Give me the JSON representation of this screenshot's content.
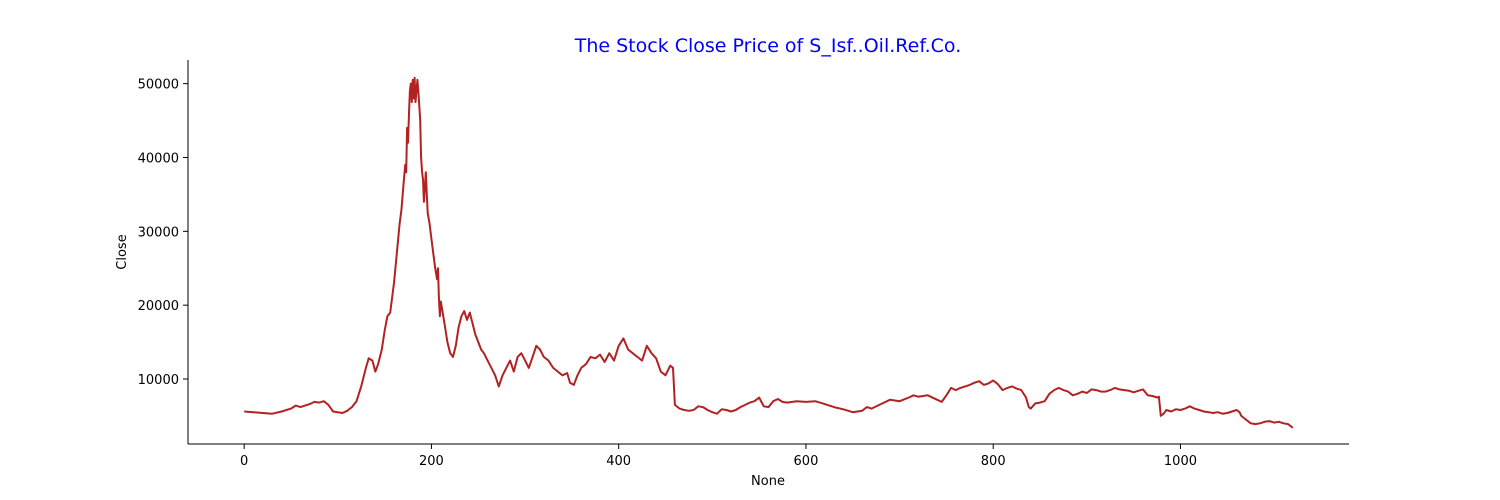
{
  "chart_data": {
    "type": "line",
    "title": "The Stock Close Price of S_Isf..Oil.Ref.Co.",
    "xlabel": "None",
    "ylabel": "Close",
    "xlim": [
      -60,
      1180
    ],
    "ylim": [
      1200,
      53200
    ],
    "xticks": [
      0,
      200,
      400,
      600,
      800,
      1000
    ],
    "yticks": [
      10000,
      20000,
      30000,
      40000,
      50000
    ],
    "grid": false,
    "colors": {
      "line": "#b22222",
      "title": "#0000ff"
    },
    "series": [
      {
        "points": [
          [
            0,
            5600
          ],
          [
            10,
            5500
          ],
          [
            20,
            5400
          ],
          [
            30,
            5300
          ],
          [
            40,
            5600
          ],
          [
            50,
            6000
          ],
          [
            55,
            6400
          ],
          [
            60,
            6200
          ],
          [
            70,
            6600
          ],
          [
            75,
            6900
          ],
          [
            80,
            6800
          ],
          [
            85,
            7000
          ],
          [
            90,
            6500
          ],
          [
            95,
            5600
          ],
          [
            100,
            5500
          ],
          [
            105,
            5400
          ],
          [
            110,
            5700
          ],
          [
            115,
            6200
          ],
          [
            120,
            7000
          ],
          [
            125,
            9000
          ],
          [
            130,
            11500
          ],
          [
            133,
            12800
          ],
          [
            137,
            12500
          ],
          [
            140,
            11000
          ],
          [
            143,
            12000
          ],
          [
            147,
            14000
          ],
          [
            150,
            16500
          ],
          [
            153,
            18500
          ],
          [
            156,
            19000
          ],
          [
            160,
            23000
          ],
          [
            163,
            27000
          ],
          [
            166,
            31000
          ],
          [
            168,
            33000
          ],
          [
            170,
            36000
          ],
          [
            172,
            39000
          ],
          [
            173,
            38000
          ],
          [
            174,
            44000
          ],
          [
            175,
            42000
          ],
          [
            176,
            46000
          ],
          [
            177,
            49000
          ],
          [
            178,
            50000
          ],
          [
            179,
            47500
          ],
          [
            180,
            50500
          ],
          [
            181,
            48000
          ],
          [
            182,
            50800
          ],
          [
            183,
            47500
          ],
          [
            184,
            49000
          ],
          [
            185,
            50500
          ],
          [
            186,
            49000
          ],
          [
            187,
            47000
          ],
          [
            188,
            45000
          ],
          [
            189,
            40000
          ],
          [
            190,
            38000
          ],
          [
            191,
            37000
          ],
          [
            192,
            34000
          ],
          [
            193,
            36000
          ],
          [
            194,
            38000
          ],
          [
            195,
            35000
          ],
          [
            196,
            32500
          ],
          [
            198,
            31000
          ],
          [
            200,
            29000
          ],
          [
            202,
            27000
          ],
          [
            204,
            25000
          ],
          [
            206,
            23500
          ],
          [
            207,
            25000
          ],
          [
            208,
            21000
          ],
          [
            209,
            18500
          ],
          [
            210,
            20500
          ],
          [
            212,
            19000
          ],
          [
            214,
            17500
          ],
          [
            217,
            15000
          ],
          [
            220,
            13500
          ],
          [
            223,
            13000
          ],
          [
            226,
            14500
          ],
          [
            229,
            17000
          ],
          [
            232,
            18500
          ],
          [
            235,
            19200
          ],
          [
            238,
            18000
          ],
          [
            241,
            19000
          ],
          [
            244,
            17500
          ],
          [
            247,
            16000
          ],
          [
            250,
            15000
          ],
          [
            253,
            14000
          ],
          [
            256,
            13500
          ],
          [
            260,
            12500
          ],
          [
            264,
            11500
          ],
          [
            268,
            10500
          ],
          [
            272,
            9000
          ],
          [
            276,
            10500
          ],
          [
            280,
            11500
          ],
          [
            284,
            12500
          ],
          [
            288,
            11000
          ],
          [
            292,
            13000
          ],
          [
            296,
            13500
          ],
          [
            300,
            12500
          ],
          [
            304,
            11500
          ],
          [
            308,
            13000
          ],
          [
            312,
            14500
          ],
          [
            316,
            14000
          ],
          [
            320,
            13000
          ],
          [
            325,
            12500
          ],
          [
            330,
            11500
          ],
          [
            335,
            11000
          ],
          [
            340,
            10500
          ],
          [
            345,
            10800
          ],
          [
            348,
            9500
          ],
          [
            352,
            9200
          ],
          [
            356,
            10500
          ],
          [
            360,
            11500
          ],
          [
            365,
            12000
          ],
          [
            370,
            13000
          ],
          [
            375,
            12800
          ],
          [
            380,
            13300
          ],
          [
            385,
            12300
          ],
          [
            390,
            13500
          ],
          [
            395,
            12500
          ],
          [
            400,
            14500
          ],
          [
            405,
            15500
          ],
          [
            410,
            14000
          ],
          [
            415,
            13500
          ],
          [
            420,
            13000
          ],
          [
            425,
            12500
          ],
          [
            430,
            14500
          ],
          [
            435,
            13500
          ],
          [
            440,
            12800
          ],
          [
            445,
            11000
          ],
          [
            450,
            10500
          ],
          [
            455,
            11800
          ],
          [
            458,
            11500
          ],
          [
            460,
            6500
          ],
          [
            465,
            6000
          ],
          [
            470,
            5800
          ],
          [
            475,
            5700
          ],
          [
            480,
            5800
          ],
          [
            485,
            6300
          ],
          [
            490,
            6200
          ],
          [
            495,
            5800
          ],
          [
            500,
            5500
          ],
          [
            505,
            5300
          ],
          [
            510,
            5900
          ],
          [
            515,
            5800
          ],
          [
            520,
            5600
          ],
          [
            525,
            5800
          ],
          [
            530,
            6200
          ],
          [
            535,
            6500
          ],
          [
            540,
            6800
          ],
          [
            545,
            7000
          ],
          [
            550,
            7500
          ],
          [
            555,
            6300
          ],
          [
            560,
            6200
          ],
          [
            565,
            7000
          ],
          [
            570,
            7300
          ],
          [
            575,
            6900
          ],
          [
            580,
            6800
          ],
          [
            590,
            7000
          ],
          [
            600,
            6900
          ],
          [
            610,
            7000
          ],
          [
            620,
            6600
          ],
          [
            630,
            6200
          ],
          [
            640,
            5900
          ],
          [
            650,
            5500
          ],
          [
            655,
            5600
          ],
          [
            660,
            5700
          ],
          [
            665,
            6200
          ],
          [
            670,
            6000
          ],
          [
            680,
            6600
          ],
          [
            690,
            7200
          ],
          [
            700,
            7000
          ],
          [
            710,
            7500
          ],
          [
            715,
            7800
          ],
          [
            720,
            7600
          ],
          [
            730,
            7800
          ],
          [
            740,
            7200
          ],
          [
            745,
            6900
          ],
          [
            750,
            7800
          ],
          [
            755,
            8800
          ],
          [
            760,
            8500
          ],
          [
            765,
            8800
          ],
          [
            770,
            9000
          ],
          [
            775,
            9200
          ],
          [
            780,
            9500
          ],
          [
            785,
            9700
          ],
          [
            790,
            9200
          ],
          [
            795,
            9400
          ],
          [
            800,
            9800
          ],
          [
            805,
            9300
          ],
          [
            810,
            8500
          ],
          [
            815,
            8800
          ],
          [
            820,
            9000
          ],
          [
            825,
            8700
          ],
          [
            830,
            8500
          ],
          [
            835,
            7500
          ],
          [
            838,
            6200
          ],
          [
            840,
            6000
          ],
          [
            845,
            6700
          ],
          [
            850,
            6800
          ],
          [
            855,
            7000
          ],
          [
            860,
            8000
          ],
          [
            865,
            8500
          ],
          [
            870,
            8800
          ],
          [
            875,
            8500
          ],
          [
            880,
            8300
          ],
          [
            885,
            7800
          ],
          [
            890,
            8000
          ],
          [
            895,
            8300
          ],
          [
            900,
            8100
          ],
          [
            905,
            8600
          ],
          [
            910,
            8500
          ],
          [
            915,
            8300
          ],
          [
            920,
            8300
          ],
          [
            925,
            8500
          ],
          [
            930,
            8800
          ],
          [
            935,
            8600
          ],
          [
            940,
            8500
          ],
          [
            945,
            8400
          ],
          [
            950,
            8200
          ],
          [
            955,
            8400
          ],
          [
            960,
            8600
          ],
          [
            965,
            7800
          ],
          [
            970,
            7700
          ],
          [
            975,
            7500
          ],
          [
            977,
            7600
          ],
          [
            979,
            5000
          ],
          [
            982,
            5300
          ],
          [
            985,
            5800
          ],
          [
            990,
            5600
          ],
          [
            995,
            5900
          ],
          [
            1000,
            5800
          ],
          [
            1005,
            6000
          ],
          [
            1010,
            6300
          ],
          [
            1015,
            6000
          ],
          [
            1020,
            5800
          ],
          [
            1025,
            5600
          ],
          [
            1030,
            5500
          ],
          [
            1035,
            5400
          ],
          [
            1040,
            5500
          ],
          [
            1045,
            5300
          ],
          [
            1050,
            5400
          ],
          [
            1055,
            5600
          ],
          [
            1060,
            5800
          ],
          [
            1063,
            5500
          ],
          [
            1065,
            5000
          ],
          [
            1070,
            4500
          ],
          [
            1075,
            4000
          ],
          [
            1080,
            3900
          ],
          [
            1085,
            4000
          ],
          [
            1090,
            4200
          ],
          [
            1095,
            4300
          ],
          [
            1100,
            4100
          ],
          [
            1105,
            4200
          ],
          [
            1110,
            4000
          ],
          [
            1115,
            3900
          ],
          [
            1120,
            3400
          ]
        ]
      }
    ]
  }
}
